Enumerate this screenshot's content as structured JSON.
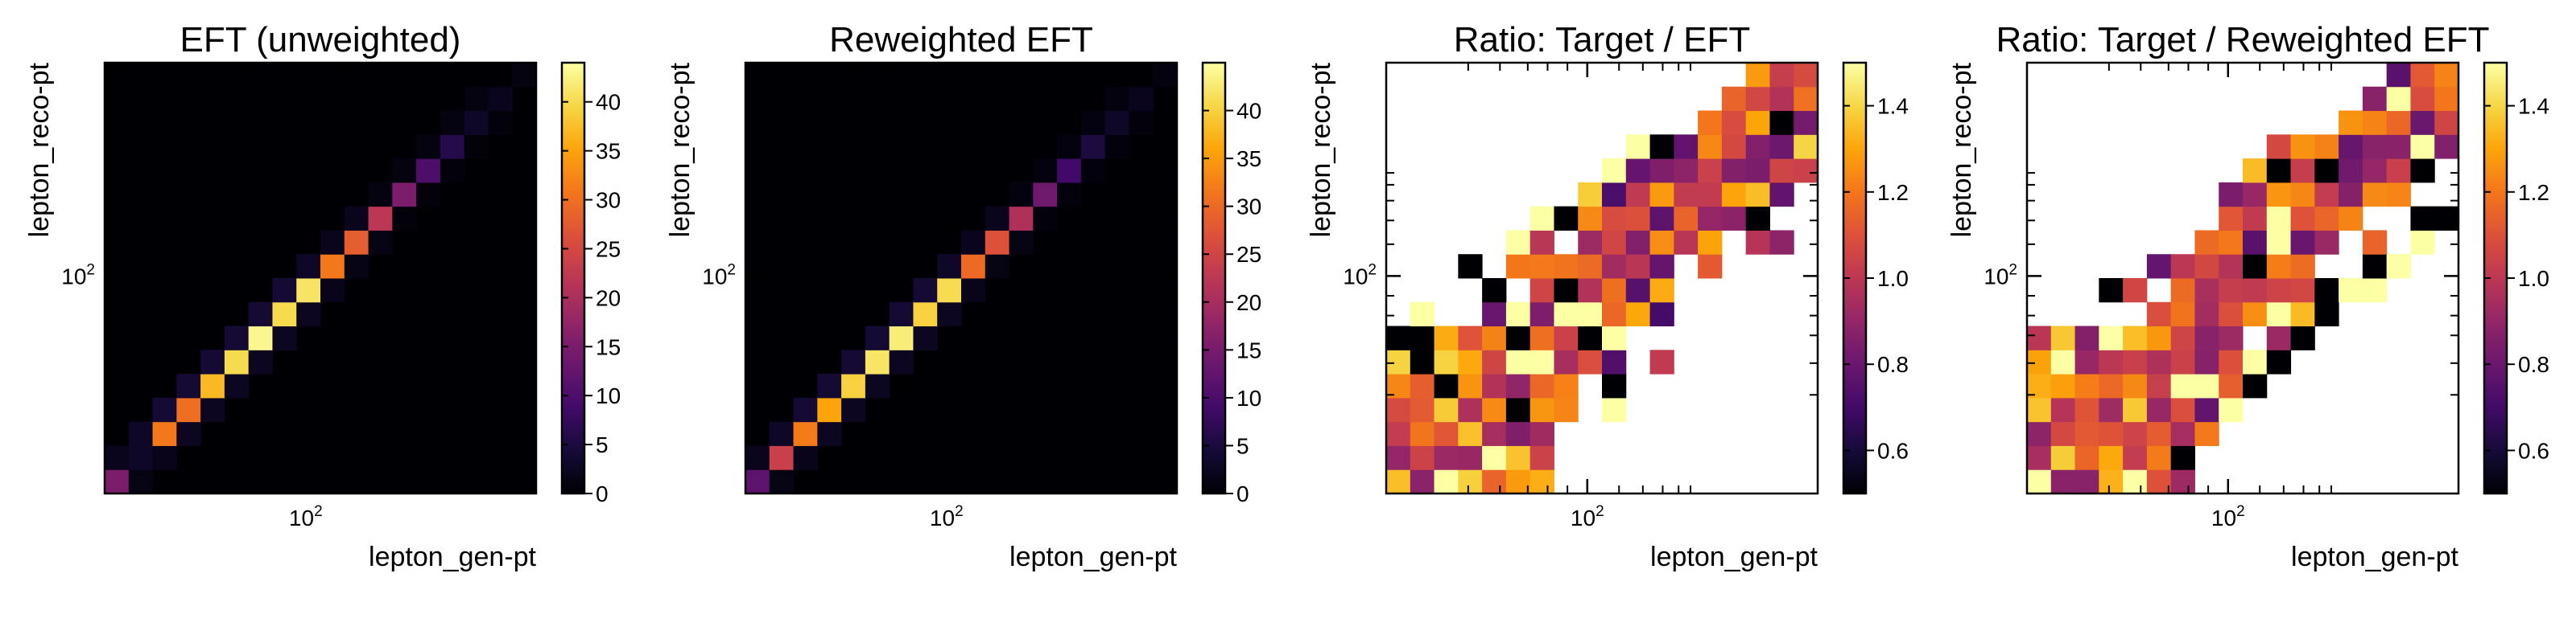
{
  "chart_data": [
    {
      "type": "heatmap",
      "title": "EFT (unweighted)",
      "xlabel": "lepton_gen-pt",
      "ylabel": "lepton_reco-pt",
      "x_scale": "log",
      "y_scale": "log",
      "x_tick_labels": [
        "10",
        "2"
      ],
      "y_tick_labels": [
        "10",
        "2"
      ],
      "colorbar": {
        "min": 0,
        "max": 44,
        "ticks": [
          "0",
          "5",
          "10",
          "15",
          "20",
          "25",
          "30",
          "35",
          "40"
        ],
        "colormap": "inferno"
      },
      "grid": false,
      "diag_values": [
        15,
        3,
        31,
        30,
        37,
        40,
        43,
        40,
        41,
        31,
        28,
        22,
        15,
        10,
        6,
        3,
        2,
        1
      ],
      "offdiag_values": [
        2,
        3,
        4,
        4,
        4,
        4,
        4,
        4,
        3,
        2,
        2,
        1,
        1,
        1,
        1,
        1,
        0,
        0
      ]
    },
    {
      "type": "heatmap",
      "title": "Reweighted EFT",
      "xlabel": "lepton_gen-pt",
      "ylabel": "lepton_reco-pt",
      "x_scale": "log",
      "y_scale": "log",
      "x_tick_labels": [
        "10",
        "2"
      ],
      "y_tick_labels": [
        "10",
        "2"
      ],
      "colorbar": {
        "min": 0,
        "max": 45,
        "ticks": [
          "0",
          "5",
          "10",
          "15",
          "20",
          "25",
          "30",
          "35",
          "40"
        ],
        "colormap": "inferno"
      },
      "grid": false,
      "diag_values": [
        12,
        24,
        32,
        36,
        40,
        42,
        43,
        40,
        41,
        30,
        27,
        21,
        14,
        9,
        5,
        3,
        2,
        1
      ],
      "offdiag_values": [
        2,
        3,
        4,
        4,
        4,
        4,
        4,
        4,
        3,
        2,
        2,
        1,
        1,
        1,
        1,
        1,
        0,
        0
      ]
    },
    {
      "type": "heatmap",
      "title": "Ratio: Target / EFT",
      "xlabel": "lepton_gen-pt",
      "ylabel": "lepton_reco-pt",
      "x_scale": "log",
      "y_scale": "log",
      "x_tick_labels": [
        "10",
        "2"
      ],
      "y_tick_labels": [
        "10",
        "2"
      ],
      "colorbar": {
        "min": 0.5,
        "max": 1.5,
        "ticks": [
          "0.6",
          "0.8",
          "1.0",
          "1.2",
          "1.4"
        ],
        "colormap": "inferno"
      },
      "grid": false,
      "empty_bins": "white"
    },
    {
      "type": "heatmap",
      "title": "Ratio: Target / Reweighted EFT",
      "xlabel": "lepton_gen-pt",
      "ylabel": "lepton_reco-pt",
      "x_scale": "log",
      "y_scale": "log",
      "x_tick_labels": [
        "10",
        "2"
      ],
      "y_tick_labels": [
        "10",
        "2"
      ],
      "colorbar": {
        "min": 0.5,
        "max": 1.5,
        "ticks": [
          "0.6",
          "0.8",
          "1.0",
          "1.2",
          "1.4"
        ],
        "colormap": "inferno"
      },
      "grid": false,
      "empty_bins": "white"
    }
  ]
}
